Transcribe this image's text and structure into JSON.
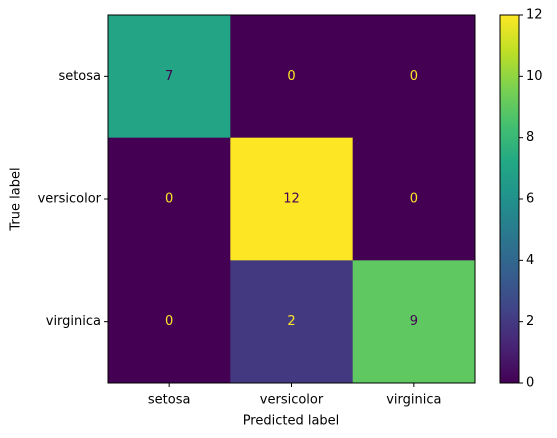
{
  "chart_data": {
    "type": "heatmap",
    "x_label": "Predicted label",
    "y_label": "True label",
    "x_categories": [
      "setosa",
      "versicolor",
      "virginica"
    ],
    "y_categories": [
      "setosa",
      "versicolor",
      "virginica"
    ],
    "values": [
      [
        7,
        0,
        0
      ],
      [
        0,
        12,
        0
      ],
      [
        0,
        2,
        9
      ]
    ],
    "colormap": "viridis",
    "clim": [
      0,
      12
    ],
    "colorbar_ticks": [
      0,
      2,
      4,
      6,
      8,
      10,
      12
    ]
  }
}
